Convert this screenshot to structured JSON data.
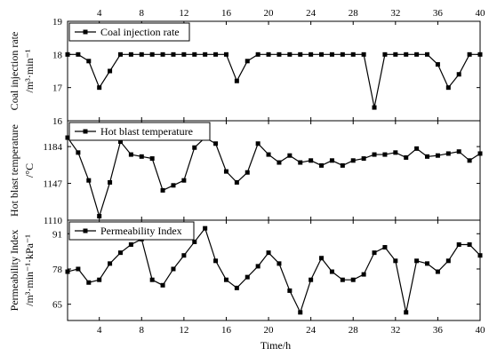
{
  "chart_data": {
    "type": "line",
    "x": [
      1,
      2,
      3,
      4,
      5,
      6,
      7,
      8,
      9,
      10,
      11,
      12,
      13,
      14,
      15,
      16,
      17,
      18,
      19,
      20,
      21,
      22,
      23,
      24,
      25,
      26,
      27,
      28,
      29,
      30,
      31,
      32,
      33,
      34,
      35,
      36,
      37,
      38,
      39,
      40
    ],
    "xlabel": "Time/h",
    "xlim": [
      1,
      40
    ],
    "xticks": [
      4,
      8,
      12,
      16,
      20,
      24,
      28,
      32,
      36,
      40
    ],
    "xtick_labels": [
      "4",
      "8",
      "12",
      "16",
      "20",
      "24",
      "28",
      "32",
      "36",
      "40"
    ],
    "panels": [
      {
        "series_name": "Coal injection rate",
        "ylabel_line1": "Coal injection rate",
        "ylabel_line2": "/m³·min⁻¹",
        "ylim": [
          16,
          19
        ],
        "yticks": [
          16,
          17,
          18,
          19
        ],
        "ytick_labels": [
          "16",
          "17",
          "18",
          "19"
        ],
        "values": [
          18,
          18,
          17.8,
          17,
          17.5,
          18,
          18,
          18,
          18,
          18,
          18,
          18,
          18,
          18,
          18,
          18,
          17.2,
          17.8,
          18,
          18,
          18,
          18,
          18,
          18,
          18,
          18,
          18,
          18,
          18,
          16.4,
          18,
          18,
          18,
          18,
          18,
          17.7,
          17,
          17.4,
          18,
          18
        ]
      },
      {
        "series_name": "Hot blast temperature",
        "ylabel_line1": "Hot blast temperature",
        "ylabel_line2": "/°C",
        "ylim": [
          1110,
          1210
        ],
        "yticks": [
          1110,
          1147,
          1184
        ],
        "ytick_labels": [
          "1110",
          "1147",
          "1184"
        ],
        "values": [
          1193,
          1178,
          1150,
          1114,
          1148,
          1189,
          1176,
          1174,
          1172,
          1140,
          1145,
          1150,
          1183,
          1193,
          1187,
          1159,
          1148,
          1158,
          1187,
          1176,
          1168,
          1175,
          1168,
          1170,
          1165,
          1170,
          1165,
          1170,
          1172,
          1176,
          1176,
          1178,
          1173,
          1182,
          1174,
          1175,
          1177,
          1179,
          1170,
          1177
        ]
      },
      {
        "series_name": "Permeability Index",
        "ylabel_line1": "Permeability Index",
        "ylabel_line2": "/m³·min⁻¹·kPa⁻¹",
        "ylim": [
          59,
          96
        ],
        "yticks": [
          65,
          78,
          91
        ],
        "ytick_labels": [
          "65",
          "78",
          "91"
        ],
        "values": [
          77,
          78,
          73,
          74,
          80,
          84,
          87,
          89,
          74,
          72,
          78,
          83,
          88,
          93,
          81,
          74,
          71,
          75,
          79,
          84,
          80,
          70,
          62,
          74,
          82,
          77,
          74,
          74,
          76,
          84,
          86,
          81,
          62,
          81,
          80,
          77,
          81,
          87,
          87,
          83
        ]
      }
    ]
  }
}
